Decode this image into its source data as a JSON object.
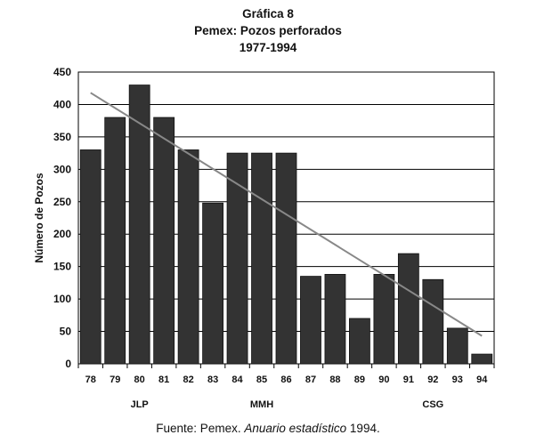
{
  "title_lines": [
    "Gráfica 8",
    "Pemex: Pozos perforados",
    "1977-1994"
  ],
  "source": {
    "prefix": "Fuente: Pemex. ",
    "italic": "Anuario estadístico",
    "suffix": " 1994."
  },
  "chart_data": {
    "type": "bar",
    "categories": [
      "78",
      "79",
      "80",
      "81",
      "82",
      "83",
      "84",
      "85",
      "86",
      "87",
      "88",
      "89",
      "90",
      "91",
      "92",
      "93",
      "94"
    ],
    "values": [
      330,
      380,
      430,
      380,
      330,
      248,
      325,
      325,
      325,
      135,
      138,
      70,
      138,
      170,
      130,
      55,
      15
    ],
    "ylabel": "Número de Pozos",
    "xlabel": "",
    "ylim": [
      0,
      450
    ],
    "yticks": [
      0,
      50,
      100,
      150,
      200,
      250,
      300,
      350,
      400,
      450
    ],
    "grid": true,
    "trend_line": {
      "from_category": "78",
      "to_category": "94",
      "start_value": 418,
      "end_value": 43
    },
    "period_labels": [
      {
        "label": "JLP",
        "at_category": "80"
      },
      {
        "label": "MMH",
        "at_category": "85"
      },
      {
        "label": "CSG",
        "at_category": "92"
      }
    ],
    "colors": {
      "bar": "#333333",
      "trend": "#888888",
      "grid": "#000000"
    }
  }
}
